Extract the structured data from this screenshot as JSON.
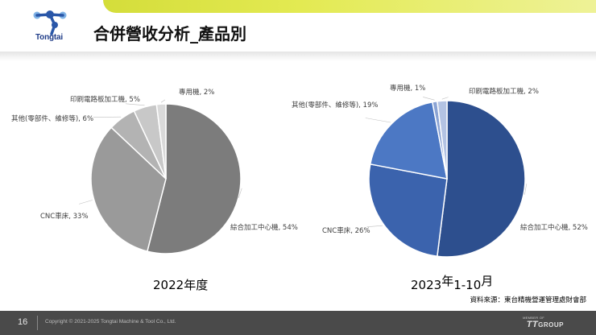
{
  "header": {
    "logo_text": "Tongtai",
    "title": "合併營收分析_產品別"
  },
  "chart_data": [
    {
      "type": "pie",
      "title": "2022年度",
      "slices": [
        {
          "name": "綜合加工中心機",
          "value": 54,
          "color": "#7c7c7c"
        },
        {
          "name": "CNC車床",
          "value": 33,
          "color": "#9a9a9a"
        },
        {
          "name": "其他(零部件、維修等)",
          "value": 6,
          "color": "#b3b3b3"
        },
        {
          "name": "印刷電路板加工機",
          "value": 5,
          "color": "#c8c8c8"
        },
        {
          "name": "專用機",
          "value": 2,
          "color": "#dadada"
        }
      ],
      "labels": [
        "綜合加工中心機, 54%",
        "CNC車床, 33%",
        "其他(零部件、維修等), 6%",
        "印刷電路板加工機, 5%",
        "專用機, 2%"
      ]
    },
    {
      "type": "pie",
      "title": "2023年1-10月",
      "slices": [
        {
          "name": "綜合加工中心機",
          "value": 52,
          "color": "#2d4f8e"
        },
        {
          "name": "CNC車床",
          "value": 26,
          "color": "#3b63ad"
        },
        {
          "name": "其他(零部件、維修等)",
          "value": 19,
          "color": "#4c78c4"
        },
        {
          "name": "專用機",
          "value": 1,
          "color": "#8aa3d4"
        },
        {
          "name": "印刷電路板加工機",
          "value": 2,
          "color": "#b3c3e3"
        }
      ],
      "labels": [
        "綜合加工中心機, 52%",
        "CNC車床, 26%",
        "其他(零部件、維修等), 19%",
        "專用機, 1%",
        "印刷電路板加工機, 2%"
      ]
    }
  ],
  "captions": {
    "left_year": "2022",
    "left_suffix": "年度",
    "right_year": "2023",
    "right_mid": "年",
    "right_range": "1-10",
    "right_suffix": "月",
    "source": "資料來源：東台精機營運管理處財會部"
  },
  "footer": {
    "page_number": "16",
    "copyright": "Copyright © 2021-2025 Tongtai Machine & Tool Co., Ltd.",
    "member_of": "MEMBER OF",
    "group_tt": "TT",
    "group_word": "GROUP"
  }
}
